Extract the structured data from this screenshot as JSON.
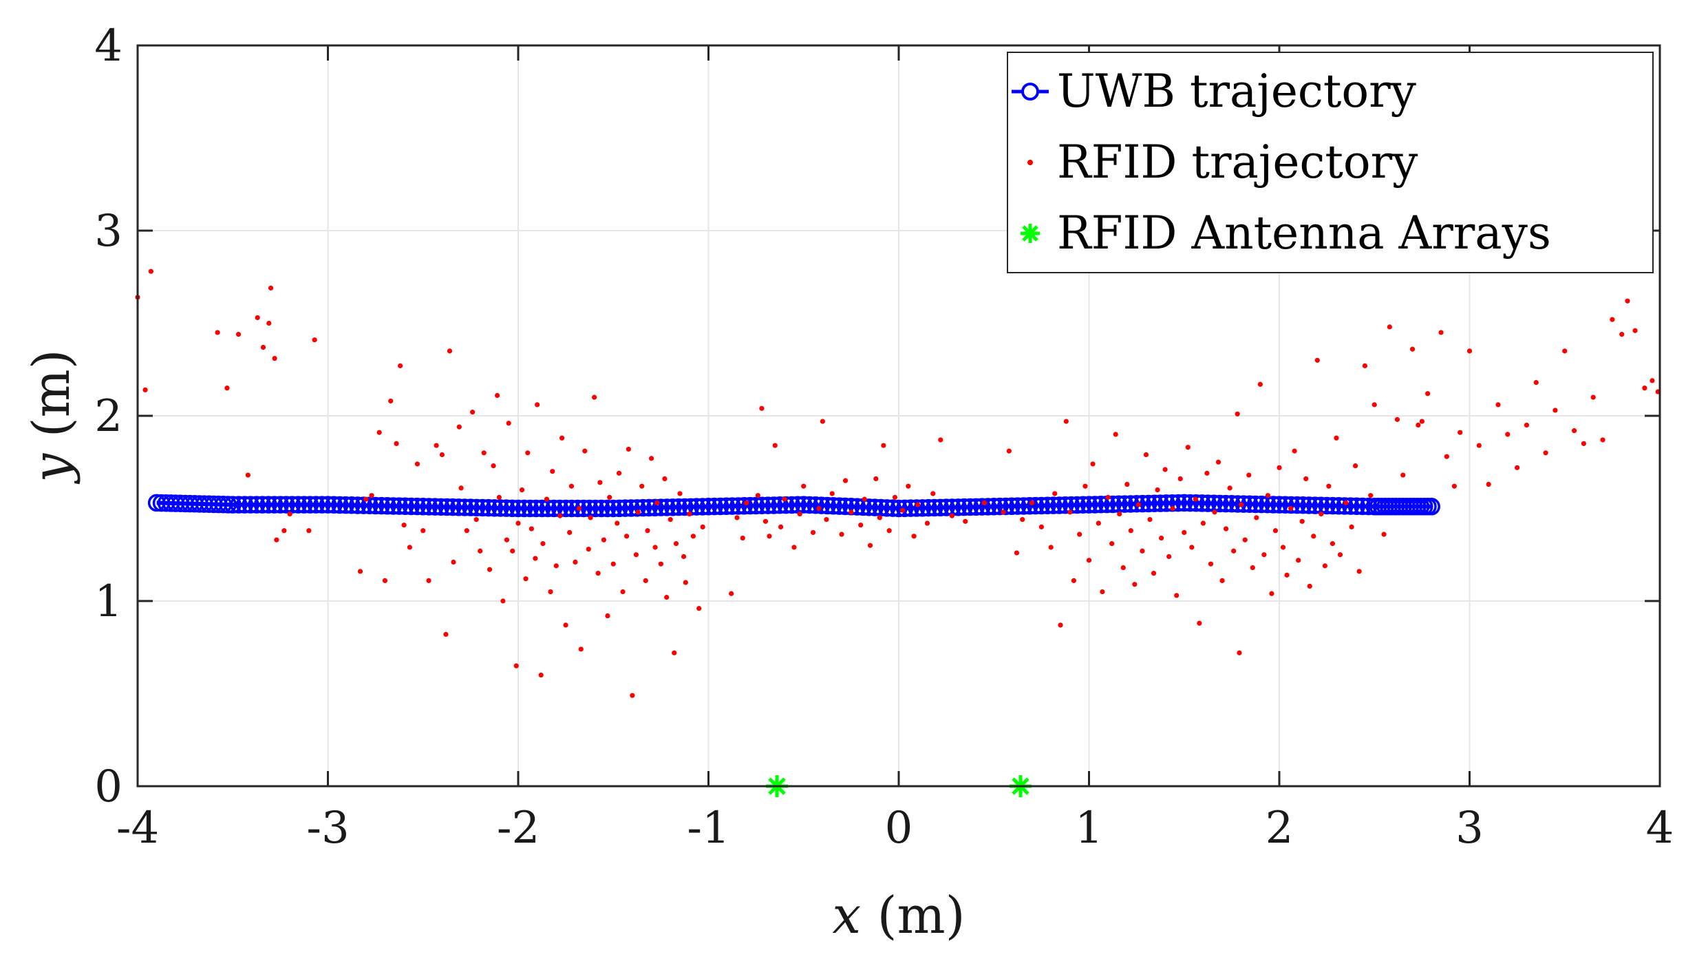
{
  "chart_data": {
    "type": "scatter",
    "title": "",
    "xlabel": {
      "var": "x",
      "unit": "(m)"
    },
    "ylabel": {
      "var": "y",
      "unit": "(m)"
    },
    "xlim": [
      -4,
      4
    ],
    "ylim": [
      0,
      4
    ],
    "xticks": [
      -4,
      -3,
      -2,
      -1,
      0,
      1,
      2,
      3,
      4
    ],
    "yticks": [
      0,
      1,
      2,
      3,
      4
    ],
    "grid": true,
    "legend": {
      "placement": "top-right",
      "entries": [
        "UWB trajectory",
        "RFID trajectory",
        "RFID Antenna Arrays"
      ]
    },
    "series": [
      {
        "name": "UWB trajectory",
        "style": "line-circle",
        "color": "#0000ff",
        "x": [
          -3.9,
          -3.5,
          -3.0,
          -2.5,
          -2.0,
          -1.5,
          -1.0,
          -0.5,
          0.0,
          0.5,
          1.0,
          1.5,
          2.0,
          2.5,
          2.8
        ],
        "y": [
          1.53,
          1.52,
          1.52,
          1.51,
          1.5,
          1.5,
          1.51,
          1.52,
          1.5,
          1.51,
          1.52,
          1.53,
          1.52,
          1.51,
          1.51
        ]
      },
      {
        "name": "RFID trajectory",
        "style": "dot",
        "color": "#ff0000",
        "points": [
          [
            -4.0,
            2.64
          ],
          [
            -3.96,
            2.14
          ],
          [
            -3.93,
            2.78
          ],
          [
            -3.58,
            2.45
          ],
          [
            -3.53,
            2.15
          ],
          [
            -3.47,
            2.44
          ],
          [
            -3.42,
            1.68
          ],
          [
            -3.37,
            2.53
          ],
          [
            -3.34,
            2.37
          ],
          [
            -3.31,
            2.5
          ],
          [
            -3.3,
            2.69
          ],
          [
            -3.28,
            2.31
          ],
          [
            -3.27,
            1.33
          ],
          [
            -3.23,
            1.38
          ],
          [
            -3.2,
            1.47
          ],
          [
            -3.07,
            2.41
          ],
          [
            -3.1,
            1.38
          ],
          [
            -2.83,
            1.16
          ],
          [
            -2.8,
            1.55
          ],
          [
            -2.77,
            1.57
          ],
          [
            -2.73,
            1.91
          ],
          [
            -2.7,
            1.11
          ],
          [
            -2.67,
            2.08
          ],
          [
            -2.64,
            1.85
          ],
          [
            -2.62,
            2.27
          ],
          [
            -2.6,
            1.41
          ],
          [
            -2.57,
            1.29
          ],
          [
            -2.53,
            1.74
          ],
          [
            -2.5,
            1.38
          ],
          [
            -2.47,
            1.11
          ],
          [
            -2.43,
            1.84
          ],
          [
            -2.4,
            1.79
          ],
          [
            -2.38,
            0.82
          ],
          [
            -2.36,
            2.35
          ],
          [
            -2.34,
            1.21
          ],
          [
            -2.31,
            1.94
          ],
          [
            -2.3,
            1.61
          ],
          [
            -2.27,
            1.38
          ],
          [
            -2.24,
            2.02
          ],
          [
            -2.22,
            1.44
          ],
          [
            -2.2,
            1.27
          ],
          [
            -2.18,
            1.8
          ],
          [
            -2.15,
            1.17
          ],
          [
            -2.13,
            1.73
          ],
          [
            -2.11,
            2.11
          ],
          [
            -2.1,
            1.56
          ],
          [
            -2.08,
            1.0
          ],
          [
            -2.06,
            1.33
          ],
          [
            -2.05,
            1.96
          ],
          [
            -2.03,
            1.27
          ],
          [
            -2.01,
            0.65
          ],
          [
            -2.0,
            1.42
          ],
          [
            -1.98,
            1.6
          ],
          [
            -1.96,
            1.12
          ],
          [
            -1.95,
            1.8
          ],
          [
            -1.93,
            1.39
          ],
          [
            -1.91,
            1.23
          ],
          [
            -1.9,
            2.06
          ],
          [
            -1.88,
            0.6
          ],
          [
            -1.87,
            1.31
          ],
          [
            -1.85,
            1.55
          ],
          [
            -1.83,
            1.05
          ],
          [
            -1.82,
            1.7
          ],
          [
            -1.8,
            1.19
          ],
          [
            -1.78,
            1.46
          ],
          [
            -1.77,
            1.88
          ],
          [
            -1.75,
            0.87
          ],
          [
            -1.73,
            1.37
          ],
          [
            -1.72,
            1.62
          ],
          [
            -1.7,
            1.21
          ],
          [
            -1.68,
            1.5
          ],
          [
            -1.67,
            0.74
          ],
          [
            -1.65,
            1.81
          ],
          [
            -1.63,
            1.28
          ],
          [
            -1.62,
            1.45
          ],
          [
            -1.6,
            2.1
          ],
          [
            -1.58,
            1.15
          ],
          [
            -1.57,
            1.64
          ],
          [
            -1.55,
            1.33
          ],
          [
            -1.53,
            0.92
          ],
          [
            -1.52,
            1.56
          ],
          [
            -1.5,
            1.2
          ],
          [
            -1.48,
            1.42
          ],
          [
            -1.47,
            1.69
          ],
          [
            -1.45,
            1.05
          ],
          [
            -1.43,
            1.35
          ],
          [
            -1.42,
            1.82
          ],
          [
            -1.4,
            0.49
          ],
          [
            -1.38,
            1.25
          ],
          [
            -1.37,
            1.48
          ],
          [
            -1.35,
            1.62
          ],
          [
            -1.33,
            1.11
          ],
          [
            -1.32,
            1.38
          ],
          [
            -1.3,
            1.77
          ],
          [
            -1.28,
            1.29
          ],
          [
            -1.27,
            1.53
          ],
          [
            -1.25,
            1.2
          ],
          [
            -1.23,
            1.66
          ],
          [
            -1.22,
            1.02
          ],
          [
            -1.2,
            1.44
          ],
          [
            -1.18,
            0.72
          ],
          [
            -1.17,
            1.31
          ],
          [
            -1.15,
            1.58
          ],
          [
            -1.13,
            1.24
          ],
          [
            -1.12,
            1.1
          ],
          [
            -1.1,
            1.47
          ],
          [
            -1.08,
            1.35
          ],
          [
            -1.05,
            0.96
          ],
          [
            -1.03,
            1.4
          ],
          [
            -0.88,
            1.04
          ],
          [
            -0.85,
            1.45
          ],
          [
            -0.82,
            1.34
          ],
          [
            -0.8,
            1.53
          ],
          [
            -0.74,
            1.57
          ],
          [
            -0.72,
            2.04
          ],
          [
            -0.7,
            1.43
          ],
          [
            -0.68,
            1.35
          ],
          [
            -0.65,
            1.84
          ],
          [
            -0.62,
            1.4
          ],
          [
            -0.6,
            1.55
          ],
          [
            -0.55,
            1.29
          ],
          [
            -0.52,
            1.47
          ],
          [
            -0.5,
            1.62
          ],
          [
            -0.45,
            1.37
          ],
          [
            -0.42,
            1.5
          ],
          [
            -0.4,
            1.97
          ],
          [
            -0.38,
            1.44
          ],
          [
            -0.35,
            1.58
          ],
          [
            -0.3,
            1.36
          ],
          [
            -0.28,
            1.65
          ],
          [
            -0.25,
            1.48
          ],
          [
            -0.2,
            1.41
          ],
          [
            -0.18,
            1.55
          ],
          [
            -0.15,
            1.3
          ],
          [
            -0.12,
            1.66
          ],
          [
            -0.1,
            1.45
          ],
          [
            -0.08,
            1.84
          ],
          [
            -0.05,
            1.38
          ],
          [
            -0.02,
            1.56
          ],
          [
            0.02,
            1.49
          ],
          [
            0.05,
            1.62
          ],
          [
            0.08,
            1.35
          ],
          [
            0.1,
            1.52
          ],
          [
            0.15,
            1.42
          ],
          [
            0.18,
            1.58
          ],
          [
            0.22,
            1.87
          ],
          [
            0.28,
            1.46
          ],
          [
            0.35,
            1.43
          ],
          [
            0.45,
            1.53
          ],
          [
            0.55,
            1.48
          ],
          [
            0.58,
            1.81
          ],
          [
            0.62,
            1.26
          ],
          [
            0.65,
            1.44
          ],
          [
            0.7,
            1.53
          ],
          [
            0.75,
            1.4
          ],
          [
            0.8,
            1.29
          ],
          [
            0.82,
            1.58
          ],
          [
            0.85,
            0.87
          ],
          [
            0.88,
            1.97
          ],
          [
            0.9,
            1.48
          ],
          [
            0.92,
            1.11
          ],
          [
            0.95,
            1.36
          ],
          [
            0.98,
            1.62
          ],
          [
            1.0,
            1.22
          ],
          [
            1.02,
            1.74
          ],
          [
            1.05,
            1.42
          ],
          [
            1.07,
            1.05
          ],
          [
            1.1,
            1.56
          ],
          [
            1.12,
            1.31
          ],
          [
            1.14,
            1.9
          ],
          [
            1.16,
            1.47
          ],
          [
            1.18,
            1.18
          ],
          [
            1.2,
            1.63
          ],
          [
            1.22,
            1.38
          ],
          [
            1.24,
            1.09
          ],
          [
            1.26,
            1.52
          ],
          [
            1.28,
            1.27
          ],
          [
            1.3,
            1.79
          ],
          [
            1.32,
            1.44
          ],
          [
            1.34,
            1.15
          ],
          [
            1.36,
            1.6
          ],
          [
            1.38,
            1.34
          ],
          [
            1.4,
            1.71
          ],
          [
            1.42,
            1.24
          ],
          [
            1.44,
            1.5
          ],
          [
            1.46,
            1.03
          ],
          [
            1.48,
            1.66
          ],
          [
            1.5,
            1.37
          ],
          [
            1.52,
            1.83
          ],
          [
            1.54,
            1.29
          ],
          [
            1.56,
            1.55
          ],
          [
            1.58,
            0.88
          ],
          [
            1.6,
            1.42
          ],
          [
            1.62,
            1.69
          ],
          [
            1.64,
            1.2
          ],
          [
            1.66,
            1.48
          ],
          [
            1.68,
            1.75
          ],
          [
            1.7,
            1.11
          ],
          [
            1.72,
            1.39
          ],
          [
            1.74,
            1.61
          ],
          [
            1.76,
            1.27
          ],
          [
            1.78,
            2.01
          ],
          [
            1.79,
            0.72
          ],
          [
            1.8,
            1.52
          ],
          [
            1.82,
            1.33
          ],
          [
            1.84,
            1.68
          ],
          [
            1.86,
            1.18
          ],
          [
            1.88,
            1.45
          ],
          [
            1.9,
            2.17
          ],
          [
            1.92,
            1.25
          ],
          [
            1.94,
            1.57
          ],
          [
            1.96,
            1.04
          ],
          [
            1.98,
            1.38
          ],
          [
            2.0,
            1.72
          ],
          [
            2.02,
            1.29
          ],
          [
            2.04,
            1.14
          ],
          [
            2.06,
            1.5
          ],
          [
            2.08,
            1.81
          ],
          [
            2.1,
            1.22
          ],
          [
            2.12,
            1.43
          ],
          [
            2.14,
            1.66
          ],
          [
            2.16,
            1.08
          ],
          [
            2.18,
            1.35
          ],
          [
            2.2,
            2.3
          ],
          [
            2.22,
            1.47
          ],
          [
            2.24,
            1.19
          ],
          [
            2.26,
            1.62
          ],
          [
            2.28,
            1.31
          ],
          [
            2.3,
            1.88
          ],
          [
            2.32,
            1.25
          ],
          [
            2.35,
            1.53
          ],
          [
            2.38,
            1.4
          ],
          [
            2.4,
            1.73
          ],
          [
            2.42,
            1.16
          ],
          [
            2.45,
            2.27
          ],
          [
            2.48,
            1.57
          ],
          [
            2.5,
            2.06
          ],
          [
            2.55,
            1.36
          ],
          [
            2.58,
            2.48
          ],
          [
            2.62,
            1.98
          ],
          [
            2.65,
            1.68
          ],
          [
            2.7,
            2.36
          ],
          [
            2.73,
            1.95
          ],
          [
            2.75,
            1.97
          ],
          [
            2.78,
            2.12
          ],
          [
            2.85,
            2.45
          ],
          [
            2.88,
            1.78
          ],
          [
            2.92,
            1.62
          ],
          [
            2.95,
            1.91
          ],
          [
            3.0,
            2.35
          ],
          [
            3.05,
            1.84
          ],
          [
            3.1,
            1.63
          ],
          [
            3.15,
            2.06
          ],
          [
            3.2,
            1.9
          ],
          [
            3.25,
            1.72
          ],
          [
            3.3,
            1.95
          ],
          [
            3.35,
            2.18
          ],
          [
            3.4,
            1.8
          ],
          [
            3.45,
            2.03
          ],
          [
            3.5,
            2.35
          ],
          [
            3.55,
            1.92
          ],
          [
            3.6,
            1.85
          ],
          [
            3.65,
            2.1
          ],
          [
            3.7,
            1.87
          ],
          [
            3.75,
            2.52
          ],
          [
            3.8,
            2.44
          ],
          [
            3.83,
            2.62
          ],
          [
            3.87,
            2.46
          ],
          [
            3.92,
            2.15
          ],
          [
            3.96,
            2.19
          ],
          [
            3.99,
            2.13
          ]
        ]
      },
      {
        "name": "RFID Antenna Arrays",
        "style": "asterisk",
        "color": "#00ff00",
        "x": [
          -0.64,
          0.64
        ],
        "y": [
          0,
          0
        ]
      }
    ]
  }
}
